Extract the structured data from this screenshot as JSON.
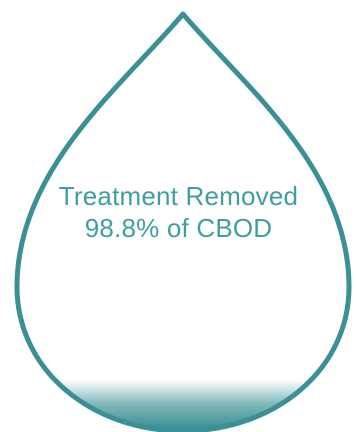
{
  "drop": {
    "caption_line1": "Treatment Removed",
    "caption_line2": "98.8% of CBOD",
    "removed_percent": 98.8
  },
  "colors": {
    "outline": "#3a9095",
    "text": "#3f9ea3",
    "fill": "#2f8a8f",
    "background": "#ffffff"
  }
}
